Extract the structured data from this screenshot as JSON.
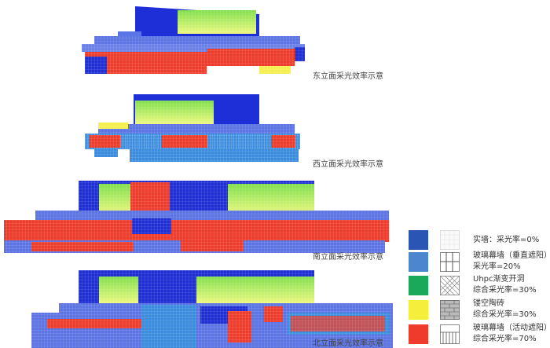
{
  "captions": {
    "east": "东立面采光效率示意",
    "west": "西立面采光效率示意",
    "south": "南立面采光效率示意",
    "north": "北立面采光效率示意"
  },
  "legend": [
    {
      "line1": "实墙：采光率=0%",
      "line2": "",
      "color": "#2a55b5",
      "pattern": "blank-pattern"
    },
    {
      "line1": "玻璃幕墙（垂直遮阳）",
      "line2": "采光率=20%",
      "color": "#4b86cf",
      "pattern": "vertical-fins-pattern"
    },
    {
      "line1": "Uhpc渐变开洞",
      "line2": "综合采光率=30%",
      "color": "#1aa85a",
      "pattern": "perforated-pattern"
    },
    {
      "line1": "镂空陶砖",
      "line2": "综合采光率=30%",
      "color": "#f5ee3a",
      "pattern": "brick-pattern"
    },
    {
      "line1": "玻璃幕墙（活动遮阳）",
      "line2": "综合采光率=70%",
      "color": "#ee3b2b",
      "pattern": "louver-pattern"
    }
  ],
  "colors": {
    "wall": "#1f2fd8",
    "glass": "#5b74e6",
    "red": "#f03c2a",
    "green": "#b8ee6a",
    "yellow": "#f5f04a",
    "lightblue": "#3a8de0"
  }
}
